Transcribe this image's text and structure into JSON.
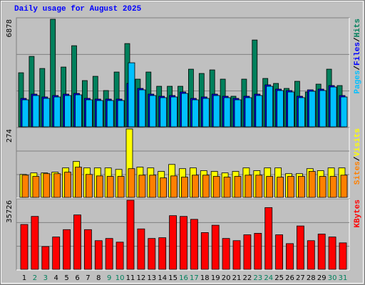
{
  "separator": "/",
  "chart_data": [
    {
      "type": "bar",
      "title": "Daily usage for August 2025",
      "ylim": [
        0,
        6878
      ],
      "yticks": [
        6878
      ],
      "series": [
        {
          "name": "Hits",
          "color": "#00805c",
          "values": [
            3458,
            4505,
            3731,
            6878,
            3822,
            5187,
            2958,
            3231,
            2321,
            3504,
            5324,
            3049,
            3504,
            2594,
            2594,
            2594,
            3686,
            3413,
            3640,
            3049,
            1957,
            3049,
            5551,
            3094,
            2776,
            2457,
            2912,
            2230,
            2730,
            3686,
            2639
          ]
        },
        {
          "name": "Files",
          "color": "#0000ff",
          "values": [
            1820,
            2093,
            1911,
            2002,
            2093,
            2139,
            1820,
            1775,
            1775,
            1775,
            2776,
            2457,
            2093,
            1957,
            2002,
            2230,
            1820,
            1911,
            2093,
            1957,
            1820,
            1957,
            2093,
            2685,
            2412,
            2321,
            1957,
            2366,
            2412,
            2639,
            2002
          ]
        },
        {
          "name": "Pages",
          "color": "#00c0ff",
          "values": [
            1729,
            2002,
            1820,
            1911,
            2002,
            2048,
            1729,
            1684,
            1684,
            1684,
            4095,
            2366,
            2002,
            1866,
            1911,
            2139,
            1729,
            1820,
            2002,
            1866,
            1729,
            1866,
            2002,
            2594,
            2321,
            2230,
            1866,
            2275,
            2321,
            2548,
            1911
          ]
        }
      ]
    },
    {
      "type": "bar",
      "ylim": [
        0,
        274
      ],
      "yticks": [
        274
      ],
      "series": [
        {
          "name": "Visits",
          "color": "#ffff00",
          "values": [
            92,
            98,
            98,
            101,
            118,
            144,
            118,
            118,
            118,
            112,
            274,
            121,
            118,
            104,
            132,
            115,
            118,
            107,
            104,
            98,
            104,
            118,
            107,
            118,
            118,
            95,
            95,
            115,
            107,
            118,
            118
          ]
        },
        {
          "name": "Sites",
          "color": "#ff8000",
          "values": [
            89,
            84,
            95,
            95,
            101,
            121,
            92,
            86,
            84,
            84,
            115,
            89,
            89,
            78,
            86,
            81,
            89,
            89,
            84,
            81,
            84,
            89,
            89,
            84,
            81,
            84,
            84,
            104,
            84,
            84,
            89
          ]
        }
      ]
    },
    {
      "type": "bar",
      "ylim": [
        0,
        35726
      ],
      "yticks": [
        35726
      ],
      "categories": [
        "1",
        "2",
        "3",
        "4",
        "5",
        "6",
        "7",
        "8",
        "9",
        "10",
        "11",
        "12",
        "13",
        "14",
        "15",
        "16",
        "17",
        "18",
        "19",
        "20",
        "21",
        "22",
        "23",
        "24",
        "25",
        "26",
        "27",
        "28",
        "29",
        "30",
        "31"
      ],
      "category_colors": [
        "#000000",
        "#00805c",
        "#00805c",
        "#000000",
        "#000000",
        "#000000",
        "#000000",
        "#000000",
        "#00805c",
        "#00805c",
        "#000000",
        "#000000",
        "#000000",
        "#000000",
        "#000000",
        "#00805c",
        "#00805c",
        "#000000",
        "#000000",
        "#000000",
        "#000000",
        "#000000",
        "#00805c",
        "#00805c",
        "#000000",
        "#000000",
        "#000000",
        "#000000",
        "#000000",
        "#00805c",
        "#00805c"
      ],
      "series": [
        {
          "name": "KBytes",
          "color": "#ff0000",
          "values": [
            23180,
            27360,
            11780,
            16720,
            20520,
            28120,
            20520,
            14820,
            15960,
            14060,
            35726,
            20900,
            15960,
            16340,
            27740,
            27360,
            25840,
            19000,
            22800,
            15960,
            14820,
            17860,
            18620,
            31920,
            17860,
            13300,
            22420,
            14820,
            18240,
            16720,
            13680
          ]
        }
      ]
    }
  ]
}
